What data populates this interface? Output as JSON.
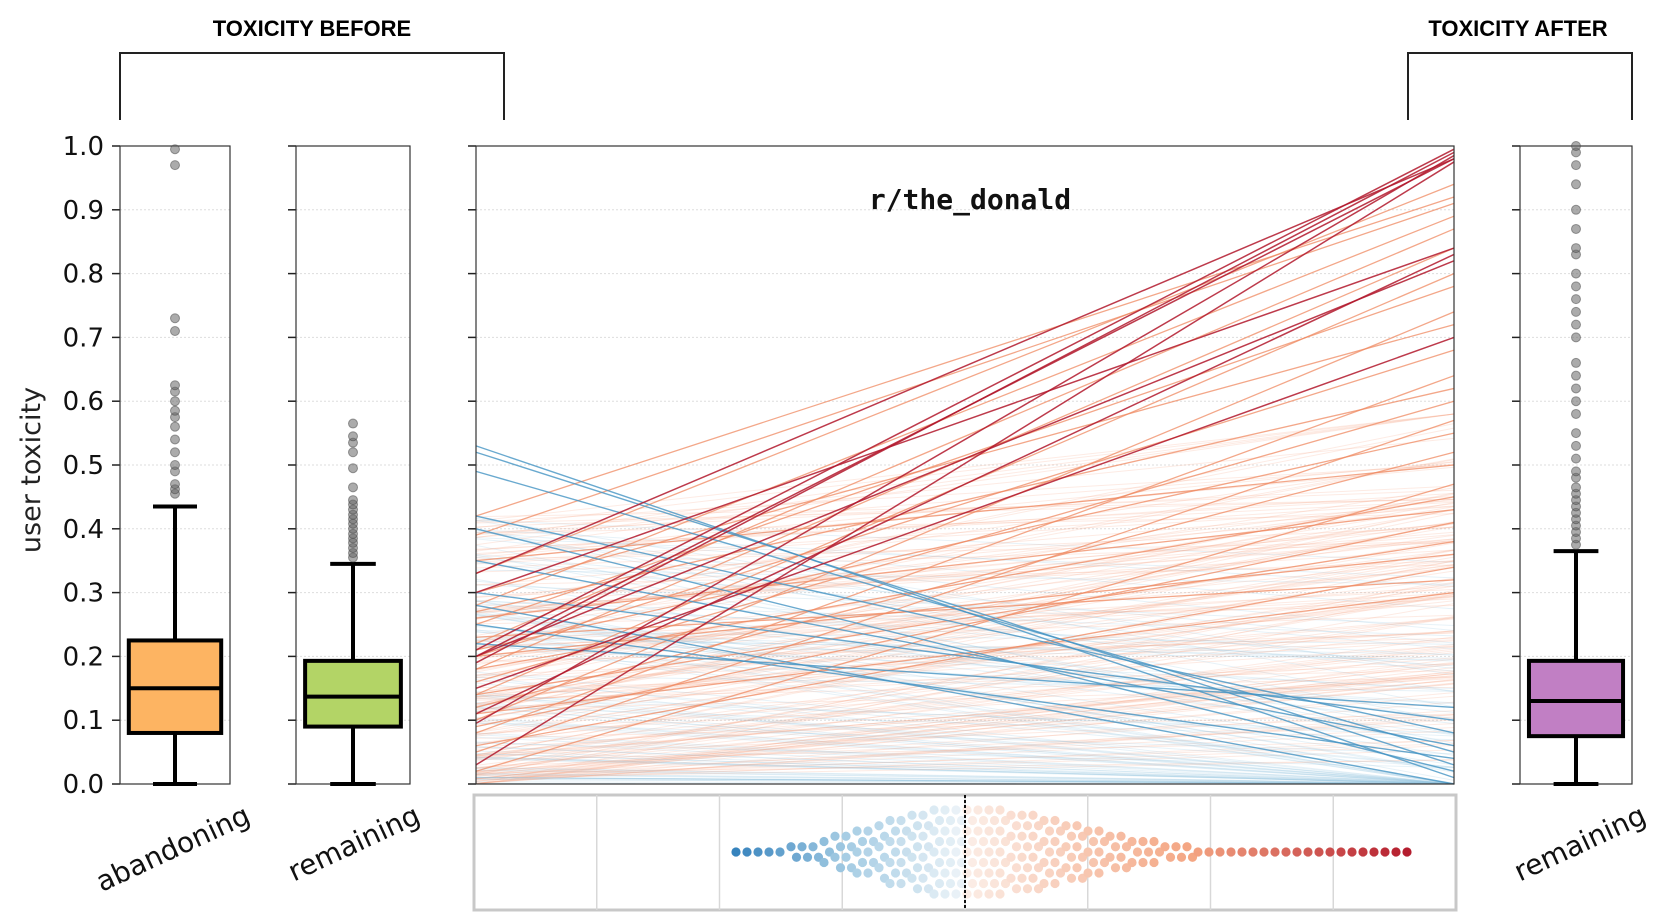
{
  "headers": {
    "before": "TOXICITY BEFORE",
    "after": "TOXICITY AFTER"
  },
  "chart_data": {
    "type": "boxplot+slopegraph",
    "title": "r/the_donald",
    "ylabel": "user toxicity",
    "ylim": [
      0,
      1
    ],
    "yticks": [
      "0.0",
      "0.1",
      "0.2",
      "0.3",
      "0.4",
      "0.5",
      "0.6",
      "0.7",
      "0.8",
      "0.9",
      "1.0"
    ],
    "boxes": [
      {
        "label": "abandoning",
        "color": "#fdb462",
        "whisker_low": 0.0,
        "q1": 0.08,
        "median": 0.15,
        "q3": 0.225,
        "whisker_high": 0.435,
        "outliers": [
          0.455,
          0.462,
          0.47,
          0.49,
          0.5,
          0.52,
          0.54,
          0.56,
          0.575,
          0.585,
          0.6,
          0.615,
          0.625,
          0.71,
          0.73,
          0.97,
          0.995
        ]
      },
      {
        "label": "remaining",
        "color": "#b3d466",
        "whisker_low": 0.0,
        "q1": 0.09,
        "median": 0.137,
        "q3": 0.193,
        "whisker_high": 0.345,
        "outliers": [
          0.355,
          0.362,
          0.37,
          0.378,
          0.385,
          0.392,
          0.4,
          0.408,
          0.415,
          0.422,
          0.43,
          0.438,
          0.445,
          0.465,
          0.495,
          0.52,
          0.535,
          0.545,
          0.565
        ]
      },
      {
        "label": "remaining",
        "color": "#c17fc4",
        "whisker_low": 0.0,
        "q1": 0.075,
        "median": 0.13,
        "q3": 0.193,
        "whisker_high": 0.365,
        "outliers": [
          0.375,
          0.385,
          0.395,
          0.405,
          0.415,
          0.425,
          0.435,
          0.445,
          0.455,
          0.465,
          0.48,
          0.49,
          0.51,
          0.53,
          0.55,
          0.58,
          0.6,
          0.62,
          0.64,
          0.66,
          0.7,
          0.72,
          0.74,
          0.76,
          0.78,
          0.8,
          0.83,
          0.84,
          0.87,
          0.9,
          0.94,
          0.97,
          0.99,
          1.0
        ]
      }
    ],
    "slope_lines": {
      "before_label": "before",
      "after_label": "after",
      "description": "each line links a user's toxicity before and after; red = increase, blue = decrease",
      "strong_increase": [
        [
          0.21,
          0.995
        ],
        [
          0.19,
          0.99
        ],
        [
          0.095,
          0.985
        ],
        [
          0.2,
          0.98
        ],
        [
          0.33,
          0.98
        ],
        [
          0.03,
          0.975
        ],
        [
          0.11,
          0.83
        ],
        [
          0.3,
          0.84
        ],
        [
          0.2,
          0.82
        ],
        [
          0.15,
          0.7
        ]
      ],
      "medium_increase": [
        [
          0.33,
          0.94
        ],
        [
          0.39,
          0.91
        ],
        [
          0.42,
          0.92
        ],
        [
          0.28,
          0.89
        ],
        [
          0.22,
          0.87
        ],
        [
          0.18,
          0.84
        ],
        [
          0.14,
          0.8
        ],
        [
          0.25,
          0.78
        ],
        [
          0.1,
          0.74
        ],
        [
          0.3,
          0.72
        ],
        [
          0.2,
          0.68
        ],
        [
          0.08,
          0.64
        ],
        [
          0.27,
          0.62
        ],
        [
          0.16,
          0.6
        ],
        [
          0.05,
          0.57
        ],
        [
          0.21,
          0.55
        ],
        [
          0.12,
          0.52
        ],
        [
          0.35,
          0.5
        ],
        [
          0.02,
          0.47
        ],
        [
          0.18,
          0.45
        ],
        [
          0.26,
          0.43
        ],
        [
          0.09,
          0.41
        ],
        [
          0.14,
          0.38
        ],
        [
          0.2,
          0.36
        ],
        [
          0.06,
          0.34
        ],
        [
          0.23,
          0.32
        ],
        [
          0.11,
          0.3
        ]
      ],
      "strong_decrease": [
        [
          0.53,
          0.01
        ],
        [
          0.52,
          0.03
        ],
        [
          0.49,
          0.05
        ],
        [
          0.42,
          0.08
        ],
        [
          0.4,
          0.02
        ],
        [
          0.35,
          0.06
        ],
        [
          0.3,
          0.1
        ],
        [
          0.25,
          0.04
        ],
        [
          0.22,
          0.12
        ],
        [
          0.28,
          0.0
        ]
      ]
    },
    "swarm": {
      "description": "distribution of toxicity change per user, blue = decrease, red = increase",
      "grid_lines": 7
    }
  }
}
